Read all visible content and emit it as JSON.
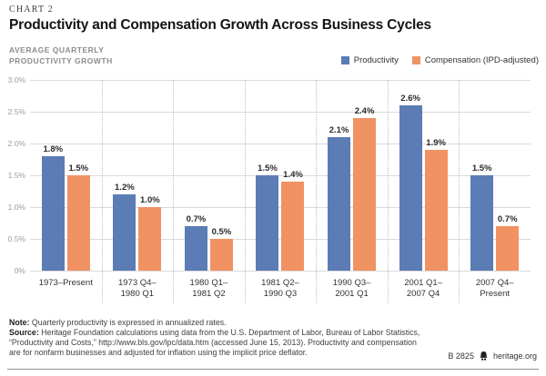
{
  "header": {
    "chart_label": "CHART 2",
    "title": "Productivity and Compensation Growth Across Business Cycles",
    "y_axis_title": "AVERAGE QUARTERLY\nPRODUCTIVITY GROWTH"
  },
  "legend": [
    {
      "label": "Productivity",
      "color": "#5b7cb5"
    },
    {
      "label": "Compensation (IPD-adjusted)",
      "color": "#f19263"
    }
  ],
  "chart_data": {
    "type": "bar",
    "title": "Productivity and Compensation Growth Across Business Cycles",
    "ylabel": "Average quarterly productivity growth",
    "categories": [
      "1973–Present",
      "1973 Q4–\n1980 Q1",
      "1980 Q1–\n1981 Q2",
      "1981 Q2–\n1990 Q3",
      "1990 Q3–\n2001 Q1",
      "2001 Q1–\n2007 Q4",
      "2007 Q4–\nPresent"
    ],
    "series": [
      {
        "name": "Productivity",
        "color": "#5b7cb5",
        "values": [
          1.8,
          1.2,
          0.7,
          1.5,
          2.1,
          2.6,
          1.5
        ]
      },
      {
        "name": "Compensation (IPD-adjusted)",
        "color": "#f19263",
        "values": [
          1.5,
          1.0,
          0.5,
          1.4,
          2.4,
          1.9,
          0.7
        ]
      }
    ],
    "ylim": [
      0,
      3
    ],
    "yticks": [
      {
        "value": 0,
        "label": "0%"
      },
      {
        "value": 0.5,
        "label": "0.5%"
      },
      {
        "value": 1,
        "label": "1.0%"
      },
      {
        "value": 1.5,
        "label": "1.5%"
      },
      {
        "value": 2,
        "label": "2.0%"
      },
      {
        "value": 2.5,
        "label": "2.5%"
      },
      {
        "value": 3,
        "label": "3.0%"
      }
    ],
    "grid": true,
    "legend_position": "top-right"
  },
  "footer": {
    "note_label": "Note:",
    "note_text": " Quarterly productivity is expressed in annualized rates.",
    "source_label": "Source:",
    "source_text": " Heritage Foundation calculations using data from the U.S. Department of Labor, Bureau of Labor Statistics, “Productivity and Costs,” http://www.bls.gov/lpc/data.htm (accessed June 15, 2013). Productivity and compensation are for nonfarm businesses and adjusted for inflation using the implicit price deflator.",
    "chart_id": "B 2825",
    "site": "heritage.org"
  }
}
